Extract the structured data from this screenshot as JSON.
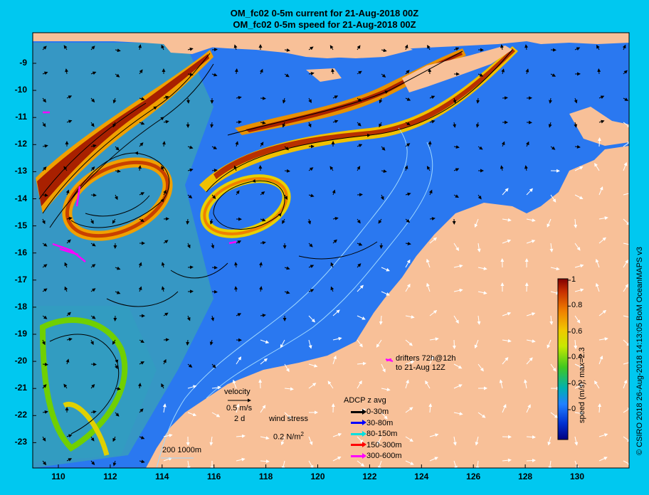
{
  "title_line1": "OM_fc02 0-5m current for 21-Aug-2018 00Z",
  "title_line2": "OM_fc02 0-5m speed for 21-Aug-2018 00Z",
  "y_axis_ticks": [
    "-9",
    "-10",
    "-11",
    "-12",
    "-13",
    "-14",
    "-15",
    "-16",
    "-17",
    "-18",
    "-19",
    "-20",
    "-21",
    "-22",
    "-23"
  ],
  "x_axis_ticks": [
    "110",
    "112",
    "114",
    "116",
    "118",
    "120",
    "122",
    "124",
    "126",
    "128",
    "130"
  ],
  "colorbar": {
    "label": "speed (m/s),  max=2.3",
    "ticks": [
      "1",
      "0.8",
      "0.6",
      "0.4",
      "0.2",
      "0"
    ],
    "colors": [
      "#a80000",
      "#e05000",
      "#f0a000",
      "#f0e800",
      "#50d000",
      "#00b0a0",
      "#2080ff",
      "#0030d0",
      "#000080"
    ]
  },
  "legend": {
    "velocity_label": "velocity",
    "velocity_scale": "0.5 m/s",
    "velocity_time": "2 d",
    "wind_label": "wind stress",
    "wind_scale": "0.2 N/m",
    "wind_exp": "2",
    "drifters_line1": "drifters 72h@12h",
    "drifters_line2": "to 21-Aug 12Z",
    "depth_contours": "200  1000m",
    "adcp_title": "ADCP z avg",
    "adcp": [
      {
        "label": "0-30m",
        "color": "#000000"
      },
      {
        "label": "30-80m",
        "color": "#0000ff"
      },
      {
        "label": "80-150m",
        "color": "#00e0e0"
      },
      {
        "label": "150-300m",
        "color": "#ff0000"
      },
      {
        "label": "300-600m",
        "color": "#ff00ff"
      }
    ]
  },
  "credit": "© CSIRO 2018   26-Aug-2018 14:13:05 BoM OceanMAPS v3",
  "colors": {
    "frame": "#00c8f0",
    "land": "#f8c098",
    "ocean": "#2a78f0"
  }
}
